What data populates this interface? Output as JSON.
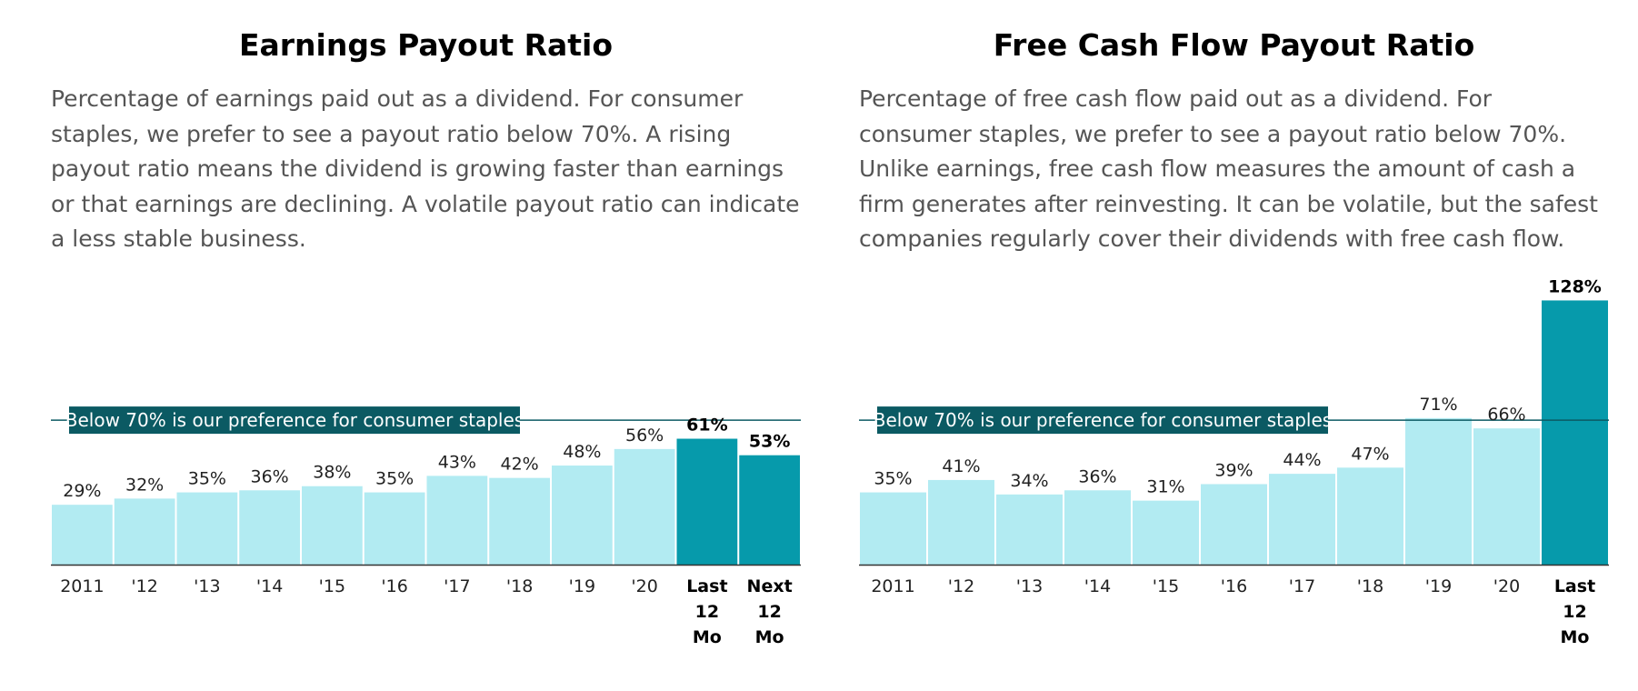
{
  "colors": {
    "bar_light": "#b2ebf2",
    "bar_highlight": "#069aab",
    "reference_line": "#0b5a63",
    "reference_label_bg": "#0b5a63",
    "title_text": "#000000",
    "description_text": "#555555"
  },
  "chart_data": [
    {
      "type": "bar",
      "title": "Earnings Payout Ratio",
      "description": "Percentage of earnings paid out as a dividend. For consumer staples, we prefer to see a payout ratio below 70%. A rising payout ratio means the dividend is growing faster than earnings or that earnings are declining. A volatile payout ratio can indicate a less stable business.",
      "categories": [
        "2011",
        "'12",
        "'13",
        "'14",
        "'15",
        "'16",
        "'17",
        "'18",
        "'19",
        "'20",
        "Last 12 Mo",
        "Next 12 Mo"
      ],
      "values": [
        29,
        32,
        35,
        36,
        38,
        35,
        43,
        42,
        48,
        56,
        61,
        53
      ],
      "value_labels": [
        "29%",
        "32%",
        "35%",
        "36%",
        "38%",
        "35%",
        "43%",
        "42%",
        "48%",
        "56%",
        "61%",
        "53%"
      ],
      "highlighted": [
        false,
        false,
        false,
        false,
        false,
        false,
        false,
        false,
        false,
        false,
        true,
        true
      ],
      "reference_line": {
        "value": 70,
        "label": "Below 70% is our preference for consumer staples"
      },
      "ylim": [
        0,
        70
      ],
      "xlabel": "",
      "ylabel": "",
      "grid": false
    },
    {
      "type": "bar",
      "title": "Free Cash Flow Payout Ratio",
      "description": "Percentage of free cash flow paid out as a dividend. For consumer staples, we prefer to see a payout ratio below 70%. Unlike earnings, free cash flow measures the amount of cash a firm generates after reinvesting. It can be volatile, but the safest companies regularly cover their dividends with free cash flow.",
      "categories": [
        "2011",
        "'12",
        "'13",
        "'14",
        "'15",
        "'16",
        "'17",
        "'18",
        "'19",
        "'20",
        "Last 12 Mo"
      ],
      "values": [
        35,
        41,
        34,
        36,
        31,
        39,
        44,
        47,
        71,
        66,
        128
      ],
      "value_labels": [
        "35%",
        "41%",
        "34%",
        "36%",
        "31%",
        "39%",
        "44%",
        "47%",
        "71%",
        "66%",
        "128%"
      ],
      "highlighted": [
        false,
        false,
        false,
        false,
        false,
        false,
        false,
        false,
        false,
        false,
        true
      ],
      "reference_line": {
        "value": 70,
        "label": "Below 70% is our preference for consumer staples"
      },
      "ylim": [
        0,
        128
      ],
      "xlabel": "",
      "ylabel": "",
      "grid": false
    }
  ]
}
